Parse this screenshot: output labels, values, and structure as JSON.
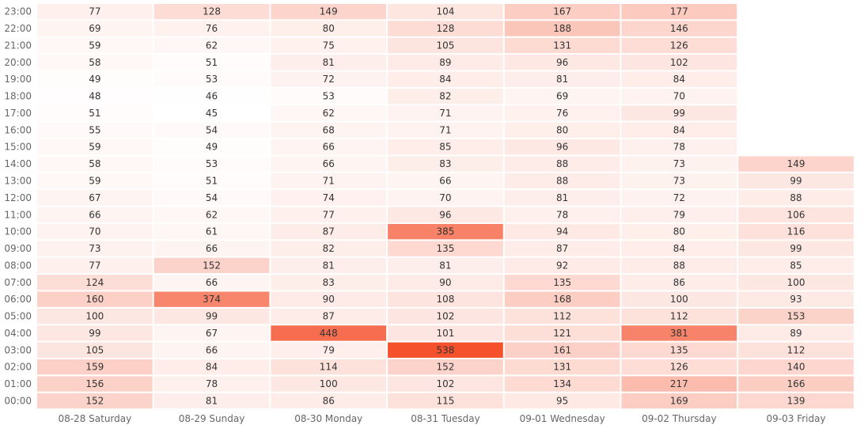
{
  "chart_data": {
    "type": "heatmap",
    "title": "",
    "xlabel": "",
    "ylabel": "",
    "columns": [
      "08-28 Saturday",
      "08-29 Sunday",
      "08-30 Monday",
      "08-31 Tuesday",
      "09-01 Wednesday",
      "09-02 Thursday",
      "09-03 Friday"
    ],
    "rows": [
      "23:00",
      "22:00",
      "21:00",
      "20:00",
      "19:00",
      "18:00",
      "17:00",
      "16:00",
      "15:00",
      "14:00",
      "13:00",
      "12:00",
      "11:00",
      "10:00",
      "09:00",
      "08:00",
      "07:00",
      "06:00",
      "05:00",
      "04:00",
      "03:00",
      "02:00",
      "01:00",
      "00:00"
    ],
    "values": [
      [
        77,
        128,
        149,
        104,
        167,
        177,
        null
      ],
      [
        69,
        76,
        80,
        128,
        188,
        146,
        null
      ],
      [
        59,
        62,
        75,
        105,
        131,
        126,
        null
      ],
      [
        58,
        51,
        81,
        89,
        96,
        102,
        null
      ],
      [
        49,
        53,
        72,
        84,
        81,
        84,
        null
      ],
      [
        48,
        46,
        53,
        82,
        69,
        70,
        null
      ],
      [
        51,
        45,
        62,
        71,
        76,
        99,
        null
      ],
      [
        55,
        54,
        68,
        71,
        80,
        84,
        null
      ],
      [
        59,
        49,
        66,
        85,
        96,
        78,
        null
      ],
      [
        58,
        53,
        66,
        83,
        88,
        73,
        149
      ],
      [
        59,
        51,
        71,
        66,
        88,
        73,
        99
      ],
      [
        67,
        54,
        74,
        70,
        81,
        72,
        88
      ],
      [
        66,
        62,
        77,
        96,
        78,
        79,
        106
      ],
      [
        70,
        61,
        87,
        385,
        94,
        80,
        116
      ],
      [
        73,
        66,
        82,
        135,
        87,
        84,
        99
      ],
      [
        77,
        152,
        81,
        81,
        92,
        88,
        85
      ],
      [
        124,
        66,
        83,
        90,
        135,
        86,
        100
      ],
      [
        160,
        374,
        90,
        108,
        168,
        100,
        93
      ],
      [
        100,
        99,
        87,
        102,
        112,
        112,
        153
      ],
      [
        99,
        67,
        448,
        101,
        121,
        381,
        89
      ],
      [
        105,
        66,
        79,
        538,
        161,
        135,
        112
      ],
      [
        159,
        84,
        114,
        152,
        131,
        126,
        140
      ],
      [
        156,
        78,
        100,
        102,
        134,
        217,
        166
      ],
      [
        152,
        81,
        86,
        115,
        95,
        169,
        139
      ]
    ],
    "color_scale": {
      "low": "#ffffff",
      "high": "#f4512c"
    },
    "value_range": [
      45,
      538
    ],
    "legend": "none",
    "grid": false
  }
}
